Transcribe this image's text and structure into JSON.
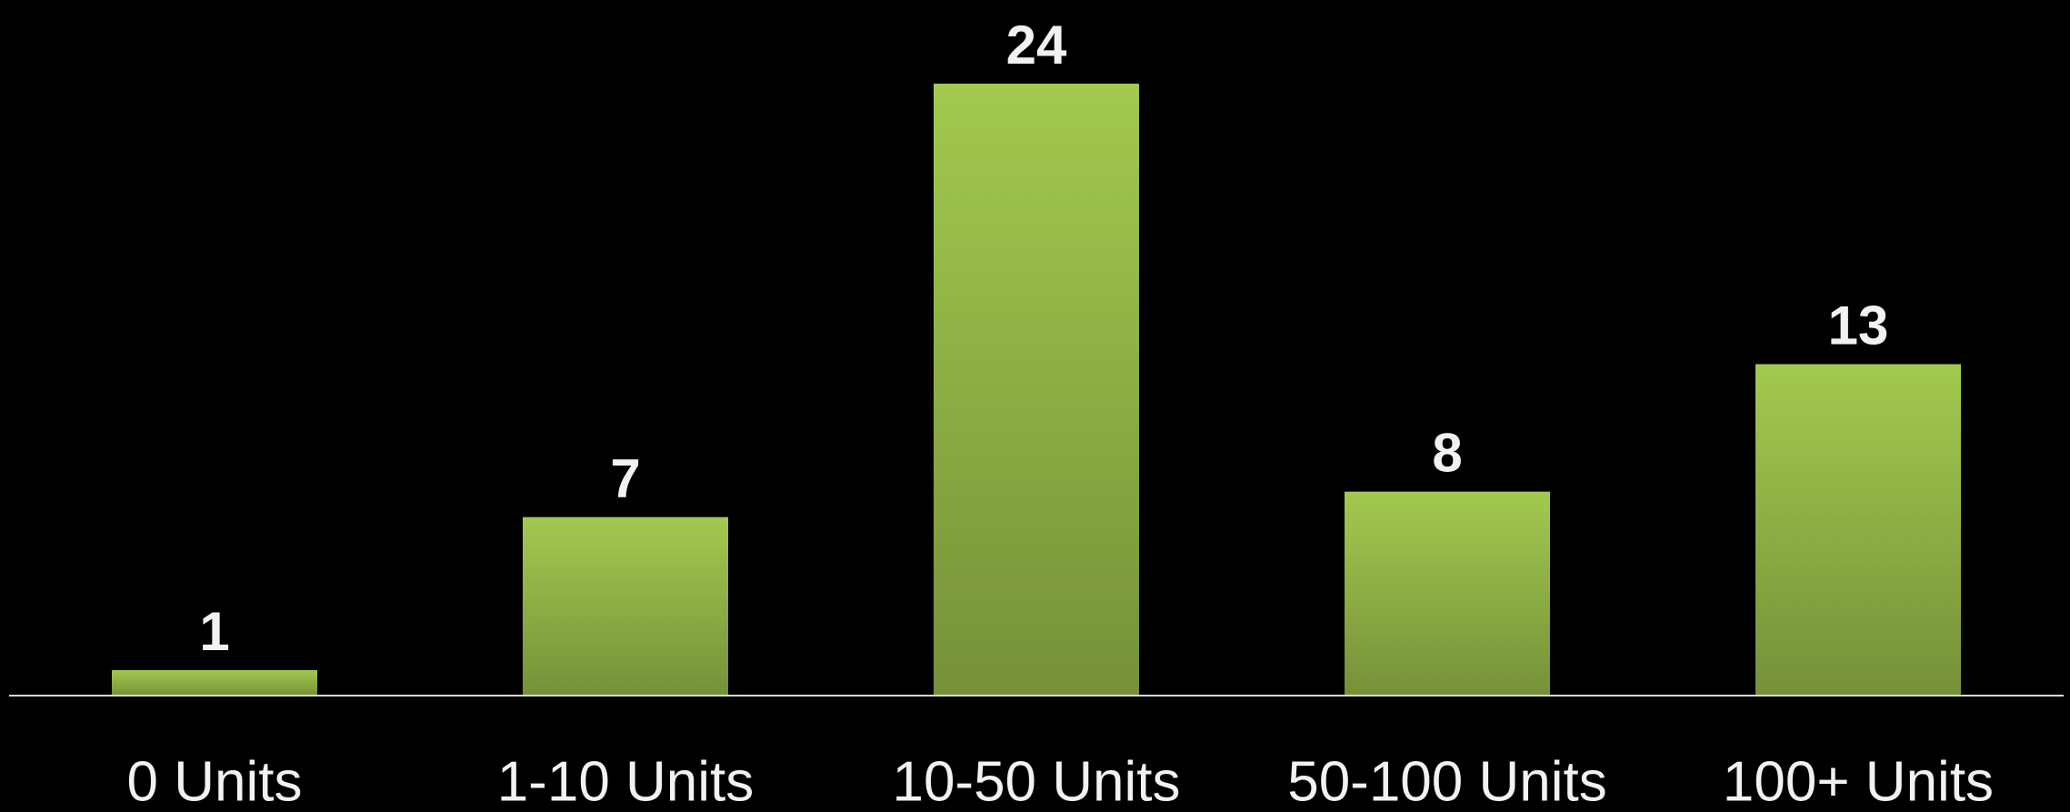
{
  "chart_data": {
    "type": "bar",
    "categories": [
      "0 Units",
      "1-10 Units",
      "10-50 Units",
      "50-100 Units",
      "100+ Units"
    ],
    "values": [
      1,
      7,
      24,
      8,
      13
    ],
    "color": "#a3c94f",
    "ylim": [
      0,
      24
    ]
  }
}
